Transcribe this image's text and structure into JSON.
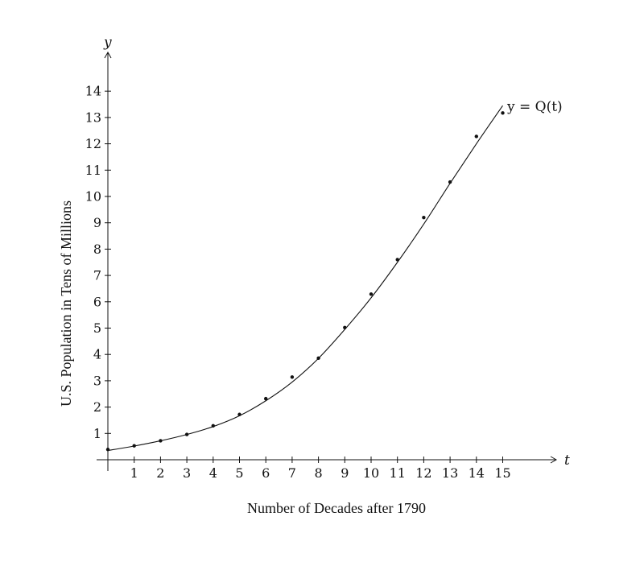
{
  "chart_data": {
    "type": "scatter",
    "title": "",
    "xlabel": "Number of Decades after 1790",
    "ylabel": "U.S. Population in Tens of Millions",
    "x_axis_var": "t",
    "y_axis_var": "y",
    "xlim": [
      0,
      17
    ],
    "ylim": [
      0,
      15
    ],
    "x_ticks": [
      "1",
      "2",
      "3",
      "4",
      "5",
      "6",
      "7",
      "8",
      "9",
      "10",
      "11",
      "12",
      "13",
      "14",
      "15"
    ],
    "y_ticks": [
      "1",
      "2",
      "3",
      "4",
      "5",
      "6",
      "7",
      "8",
      "9",
      "10",
      "11",
      "12",
      "13",
      "14"
    ],
    "grid": false,
    "series": [
      {
        "kind": "points",
        "x": [
          0,
          1,
          2,
          3,
          4,
          5,
          6,
          7,
          8,
          9,
          10,
          11,
          12,
          13,
          14,
          15
        ],
        "y": [
          0.39,
          0.53,
          0.72,
          0.96,
          1.29,
          1.72,
          2.32,
          3.14,
          3.86,
          5.02,
          6.29,
          7.6,
          9.2,
          10.55,
          12.28,
          13.17
        ]
      },
      {
        "kind": "curve",
        "label": "y = Q(t)",
        "x": [
          0,
          1,
          2,
          3,
          4,
          5,
          6,
          7,
          8,
          9,
          10,
          11,
          12,
          13,
          14,
          15
        ],
        "y": [
          0.35,
          0.52,
          0.72,
          0.96,
          1.26,
          1.67,
          2.24,
          2.95,
          3.85,
          4.95,
          6.15,
          7.5,
          8.95,
          10.5,
          12.0,
          13.45
        ]
      }
    ]
  }
}
